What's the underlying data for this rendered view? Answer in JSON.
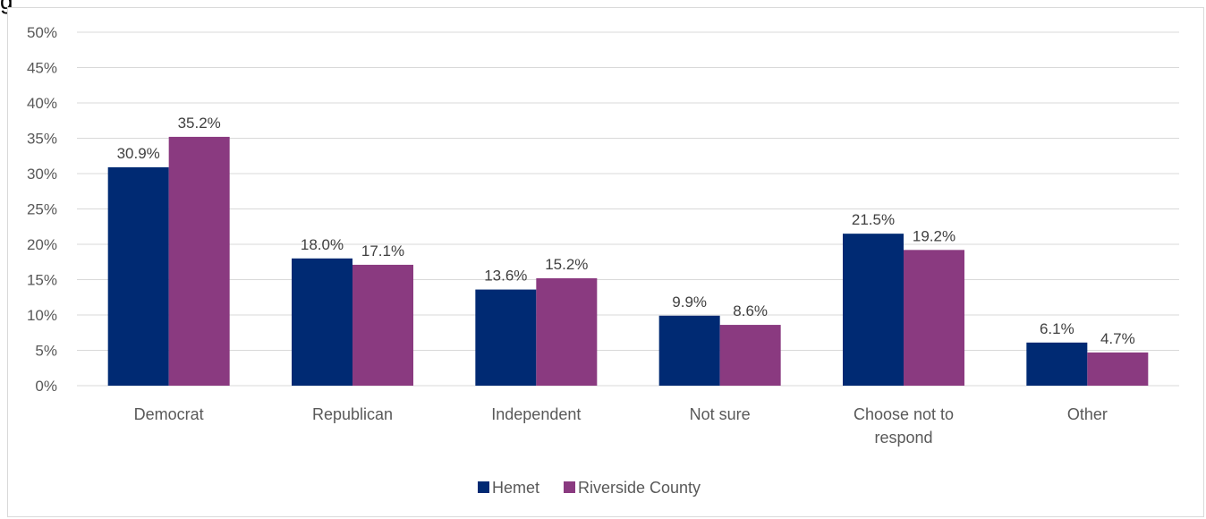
{
  "chart_data": {
    "type": "bar",
    "title": "",
    "xlabel": "",
    "ylabel": "",
    "ylim": [
      0,
      50
    ],
    "yticks": [
      "0%",
      "5%",
      "10%",
      "15%",
      "20%",
      "25%",
      "30%",
      "35%",
      "40%",
      "45%",
      "50%"
    ],
    "categories": [
      [
        "Democrat"
      ],
      [
        "Republican"
      ],
      [
        "Independent"
      ],
      [
        "Not sure"
      ],
      [
        "Choose not to",
        "respond"
      ],
      [
        "Other"
      ]
    ],
    "series": [
      {
        "name": "Hemet",
        "color": "#002a73",
        "values": [
          30.9,
          18.0,
          13.6,
          9.9,
          21.5,
          6.1
        ],
        "labels": [
          "30.9%",
          "18.0%",
          "13.6%",
          "9.9%",
          "21.5%",
          "6.1%"
        ]
      },
      {
        "name": "Riverside County",
        "color": "#8a3a80",
        "values": [
          35.2,
          17.1,
          15.2,
          8.6,
          19.2,
          4.7
        ],
        "labels": [
          "35.2%",
          "17.1%",
          "15.2%",
          "8.6%",
          "19.2%",
          "4.7%"
        ]
      }
    ],
    "grid": true,
    "legend_position": "bottom"
  },
  "clipped_title_glyph": "g"
}
